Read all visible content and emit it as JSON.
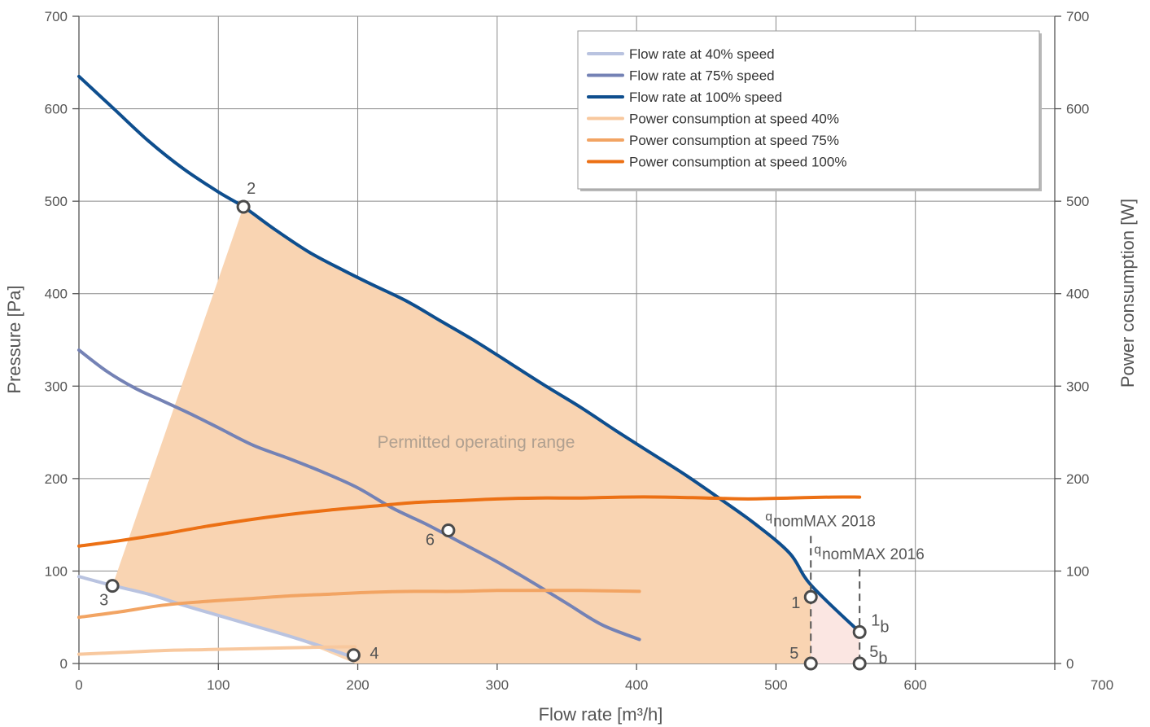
{
  "chart_data": {
    "type": "line",
    "xlabel": "Flow rate [m³/h]",
    "ylabel": "Pressure [Pa]",
    "y2label": "Power consumption [W]",
    "xlim": [
      0,
      700
    ],
    "ylim": [
      0,
      700
    ],
    "y2lim": [
      0,
      700
    ],
    "x_ticks": [
      "0",
      "100",
      "200",
      "300",
      "400",
      "500",
      "600",
      "700"
    ],
    "y_ticks": [
      "0",
      "100",
      "200",
      "300",
      "400",
      "500",
      "600",
      "700"
    ],
    "y2_ticks": [
      "0",
      "100",
      "200",
      "300",
      "400",
      "500",
      "600",
      "700"
    ],
    "grid": true,
    "legend_position": "top-right",
    "series": [
      {
        "name": "Flow rate at 40% speed",
        "color": "#b9c3e0",
        "axis": "left",
        "x": [
          0,
          25,
          50,
          75,
          100,
          125,
          150,
          175,
          200
        ],
        "y": [
          94,
          84,
          75,
          63,
          52,
          41,
          30,
          18,
          5
        ]
      },
      {
        "name": "Flow rate at 75% speed",
        "color": "#7482b5",
        "axis": "left",
        "x": [
          0,
          20,
          40,
          60,
          80,
          100,
          125,
          150,
          175,
          200,
          225,
          250,
          275,
          300,
          325,
          350,
          375,
          402
        ],
        "y": [
          339,
          316,
          298,
          284,
          270,
          255,
          236,
          222,
          207,
          190,
          168,
          150,
          130,
          110,
          88,
          65,
          42,
          26
        ]
      },
      {
        "name": "Flow rate at 100% speed",
        "color": "#0e4e8e",
        "axis": "left",
        "x": [
          0,
          25,
          50,
          75,
          100,
          118,
          140,
          165,
          190,
          210,
          235,
          260,
          285,
          310,
          335,
          360,
          385,
          410,
          435,
          460,
          485,
          510,
          525,
          560
        ],
        "y": [
          635,
          600,
          565,
          535,
          510,
          494,
          470,
          445,
          425,
          410,
          392,
          370,
          348,
          324,
          300,
          277,
          252,
          228,
          204,
          178,
          151,
          119,
          85,
          34
        ]
      },
      {
        "name": "Power consumption at speed 40%",
        "color": "#f8c89e",
        "axis": "right",
        "x": [
          0,
          30,
          60,
          90,
          120,
          150,
          190,
          198
        ],
        "y": [
          10,
          12,
          14,
          15,
          16,
          17,
          18,
          18
        ]
      },
      {
        "name": "Power consumption at speed 75%",
        "color": "#f2a463",
        "axis": "right",
        "x": [
          0,
          30,
          60,
          90,
          120,
          150,
          180,
          210,
          240,
          270,
          300,
          330,
          360,
          402
        ],
        "y": [
          50,
          56,
          63,
          67,
          70,
          73,
          75,
          77,
          78,
          78,
          79,
          79,
          79,
          78
        ]
      },
      {
        "name": "Power consumption at speed 100%",
        "color": "#ec7014",
        "axis": "right",
        "x": [
          0,
          30,
          60,
          90,
          120,
          150,
          180,
          210,
          240,
          270,
          300,
          330,
          360,
          390,
          420,
          450,
          480,
          510,
          540,
          560
        ],
        "y": [
          127,
          133,
          140,
          148,
          155,
          161,
          166,
          170,
          174,
          176,
          178,
          179,
          179,
          180,
          180,
          179,
          178,
          179,
          180,
          180
        ]
      }
    ],
    "operating_range": {
      "label": "Permitted operating range",
      "polygon": [
        [
          24,
          84
        ],
        [
          118,
          494
        ],
        [
          140,
          470
        ],
        [
          165,
          445
        ],
        [
          190,
          425
        ],
        [
          210,
          410
        ],
        [
          235,
          392
        ],
        [
          260,
          370
        ],
        [
          285,
          348
        ],
        [
          310,
          324
        ],
        [
          335,
          300
        ],
        [
          360,
          277
        ],
        [
          385,
          252
        ],
        [
          410,
          228
        ],
        [
          435,
          204
        ],
        [
          460,
          178
        ],
        [
          485,
          151
        ],
        [
          510,
          119
        ],
        [
          525,
          85
        ],
        [
          525,
          0
        ],
        [
          198,
          0
        ],
        [
          150,
          30
        ],
        [
          75,
          63
        ],
        [
          24,
          84
        ]
      ],
      "extension": [
        [
          525,
          85
        ],
        [
          560,
          34
        ],
        [
          560,
          0
        ],
        [
          525,
          0
        ]
      ]
    },
    "points": [
      {
        "label": "1",
        "sub": "",
        "x": 525,
        "y": 72,
        "dx": -24,
        "dy": 14
      },
      {
        "label": "1",
        "sub": "b",
        "x": 560,
        "y": 34,
        "dx": 14,
        "dy": -8
      },
      {
        "label": "2",
        "sub": "",
        "x": 118,
        "y": 494,
        "dx": 4,
        "dy": -16
      },
      {
        "label": "3",
        "sub": "",
        "x": 24,
        "y": 84,
        "dx": -16,
        "dy": 24
      },
      {
        "label": "4",
        "sub": "",
        "x": 197,
        "y": 9,
        "dx": 20,
        "dy": 4
      },
      {
        "label": "5",
        "sub": "",
        "x": 525,
        "y": 0,
        "dx": -26,
        "dy": -6
      },
      {
        "label": "5",
        "sub": "b",
        "x": 560,
        "y": 0,
        "dx": 12,
        "dy": -8
      },
      {
        "label": "6",
        "sub": "",
        "x": 265,
        "y": 144,
        "dx": -28,
        "dy": 18
      }
    ],
    "q_markers": [
      {
        "pre": "q",
        "text": "nomMAX 2018",
        "x": 525,
        "y_top": 138
      },
      {
        "pre": "q",
        "text": "nomMAX 2016",
        "x": 560,
        "y_top": 102
      }
    ]
  }
}
